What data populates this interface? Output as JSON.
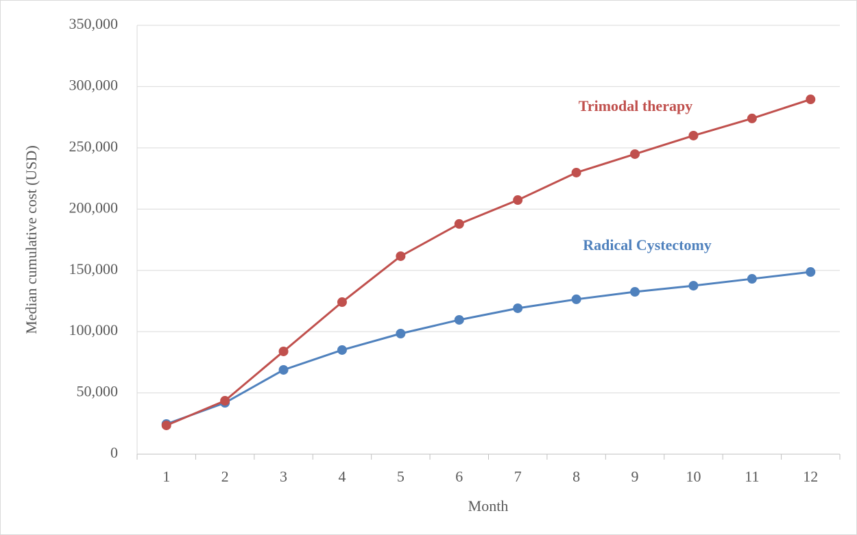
{
  "chart_data": {
    "type": "line",
    "x_label": "Month",
    "y_label": "Median cumulative cost (USD)",
    "categories": [
      "1",
      "2",
      "3",
      "4",
      "5",
      "6",
      "7",
      "8",
      "9",
      "10",
      "11",
      "12"
    ],
    "series": [
      {
        "name": "Radical Cystectomy",
        "color": "#4f81bd",
        "values": [
          24600,
          41900,
          68800,
          85000,
          98400,
          109600,
          119100,
          126400,
          132500,
          137500,
          143100,
          148700
        ]
      },
      {
        "name": "Trimodal therapy",
        "color": "#c0504d",
        "values": [
          23500,
          43600,
          83900,
          124100,
          161600,
          187900,
          207400,
          229800,
          244900,
          260000,
          274000,
          289600
        ]
      }
    ],
    "ylim": [
      0,
      350000
    ],
    "yticks": [
      0,
      {
        "value": 50000,
        "label": "50,000"
      },
      {
        "value": 100000,
        "label": "100,000"
      },
      {
        "value": 150000,
        "label": "150,000"
      },
      {
        "value": 200000,
        "label": "200,000"
      },
      {
        "value": 250000,
        "label": "250,000"
      },
      {
        "value": 300000,
        "label": "300,000"
      },
      {
        "value": 350000,
        "label": "350,000"
      }
    ],
    "grid": true
  }
}
